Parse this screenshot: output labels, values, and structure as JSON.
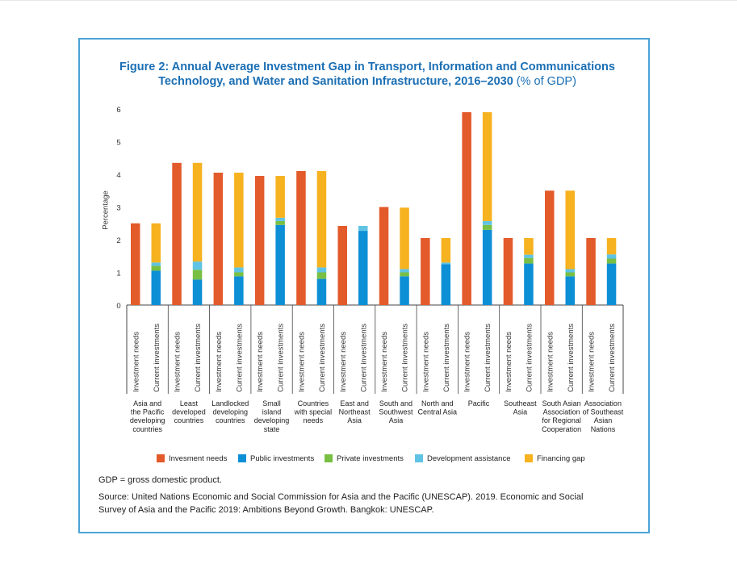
{
  "page": {
    "title_main": "Figure 2: Annual Average Investment Gap in Transport, Information and Communications",
    "title_line2": "Technology, and Water and Sanitation Infrastructure, 2016–2030",
    "title_unit": "(% of GDP)",
    "footnote": "GDP = gross domestic product.",
    "source_line1": "Source: United Nations Economic and Social Commission for Asia and the Pacific (UNESCAP). 2019. Economic and Social",
    "source_line2": "Survey of Asia and the Pacific 2019: Ambitions Beyond Growth. Bangkok: UNESCAP."
  },
  "colors": {
    "needs": "#e35a2b",
    "public": "#0d8fd6",
    "private": "#78bf44",
    "development": "#5fc3e4",
    "gap": "#f6b21f"
  },
  "chart_data": {
    "type": "bar",
    "ylabel": "Percentage",
    "ylim": [
      0,
      6
    ],
    "yticks": [
      0,
      1,
      2,
      3,
      4,
      5,
      6
    ],
    "bar_labels": [
      "Investment needs",
      "Current investments"
    ],
    "legend_position": "bottom",
    "legend": [
      "Invesment needs",
      "Public investments",
      "Private investments",
      "Development assistance",
      "Financing gap"
    ],
    "groups": [
      {
        "label": [
          "Asia and",
          "the Pacific",
          "developing",
          "countries"
        ],
        "needs": 2.5,
        "public": 1.05,
        "private": 0.15,
        "development": 0.1,
        "gap": 1.2
      },
      {
        "label": [
          "Least",
          "developed",
          "countries"
        ],
        "needs": 4.35,
        "public": 0.78,
        "private": 0.3,
        "development": 0.25,
        "gap": 3.02
      },
      {
        "label": [
          "Landlocked",
          "developing",
          "countries"
        ],
        "needs": 4.05,
        "public": 0.88,
        "private": 0.12,
        "development": 0.15,
        "gap": 2.9
      },
      {
        "label": [
          "Small",
          "island",
          "developing",
          "state"
        ],
        "needs": 3.95,
        "public": 2.45,
        "private": 0.12,
        "development": 0.1,
        "gap": 1.28
      },
      {
        "label": [
          "Countries",
          "with special",
          "needs"
        ],
        "needs": 4.1,
        "public": 0.8,
        "private": 0.2,
        "development": 0.15,
        "gap": 2.95
      },
      {
        "label": [
          "East and",
          "Northeast",
          "Asia"
        ],
        "needs": 2.42,
        "public": 2.27,
        "private": 0.0,
        "development": 0.15,
        "gap": 0.0
      },
      {
        "label": [
          "South and",
          "Southwest",
          "Asia"
        ],
        "needs": 3.0,
        "public": 0.88,
        "private": 0.12,
        "development": 0.1,
        "gap": 1.88
      },
      {
        "label": [
          "North and",
          "Central Asia"
        ],
        "needs": 2.05,
        "public": 1.25,
        "private": 0.0,
        "development": 0.05,
        "gap": 0.75
      },
      {
        "label": [
          "Pacific"
        ],
        "needs": 5.9,
        "public": 2.3,
        "private": 0.15,
        "development": 0.12,
        "gap": 3.33
      },
      {
        "label": [
          "Southeast",
          "Asia"
        ],
        "needs": 2.05,
        "public": 1.27,
        "private": 0.17,
        "development": 0.1,
        "gap": 0.51
      },
      {
        "label": [
          "South Asian",
          "Association",
          "for Regional",
          "Cooperation"
        ],
        "needs": 3.5,
        "public": 0.88,
        "private": 0.12,
        "development": 0.1,
        "gap": 2.4
      },
      {
        "label": [
          "Association",
          "of Southeast",
          "Asian",
          "Nations"
        ],
        "needs": 2.05,
        "public": 1.27,
        "private": 0.15,
        "development": 0.13,
        "gap": 0.5
      }
    ]
  }
}
